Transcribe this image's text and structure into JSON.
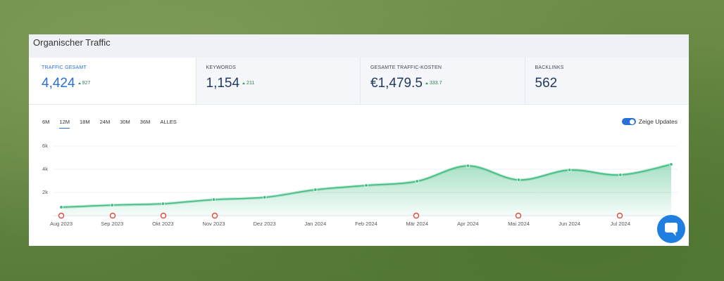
{
  "header": {
    "title": "Organischer Traffic"
  },
  "metrics": [
    {
      "label": "TRAFFIC GESAMT",
      "value": "4,424",
      "change": "927"
    },
    {
      "label": "KEYWORDS",
      "value": "1,154",
      "change": "211"
    },
    {
      "label": "GESAMTE TRAFFIC-KOSTEN",
      "value": "€1,479.5",
      "change": "333.7"
    },
    {
      "label": "BACKLINKS",
      "value": "562"
    }
  ],
  "tabs": [
    "6M",
    "12M",
    "18M",
    "24M",
    "30M",
    "36M",
    "ALLES"
  ],
  "toggle": {
    "label": "Zeige Updates"
  },
  "chart_data": {
    "type": "area",
    "categories": [
      "Aug 2023",
      "Sep 2023",
      "Okt 2023",
      "Nov 2023",
      "Dez 2023",
      "Jan 2024",
      "Feb 2024",
      "Mär 2024",
      "Apr 2024",
      "Mai 2024",
      "Jun 2024",
      "Jul 2024",
      null
    ],
    "values": [
      730,
      910,
      1030,
      1390,
      1580,
      2240,
      2610,
      2970,
      4300,
      3090,
      3940,
      3520,
      4424
    ],
    "color": "#3dbb7f",
    "ylim": [
      0,
      6000
    ],
    "yticks": [
      {
        "value": 2000,
        "label": "2k"
      },
      {
        "value": 4000,
        "label": "4k"
      },
      {
        "value": 6000,
        "label": "6k"
      }
    ],
    "grid": true
  }
}
